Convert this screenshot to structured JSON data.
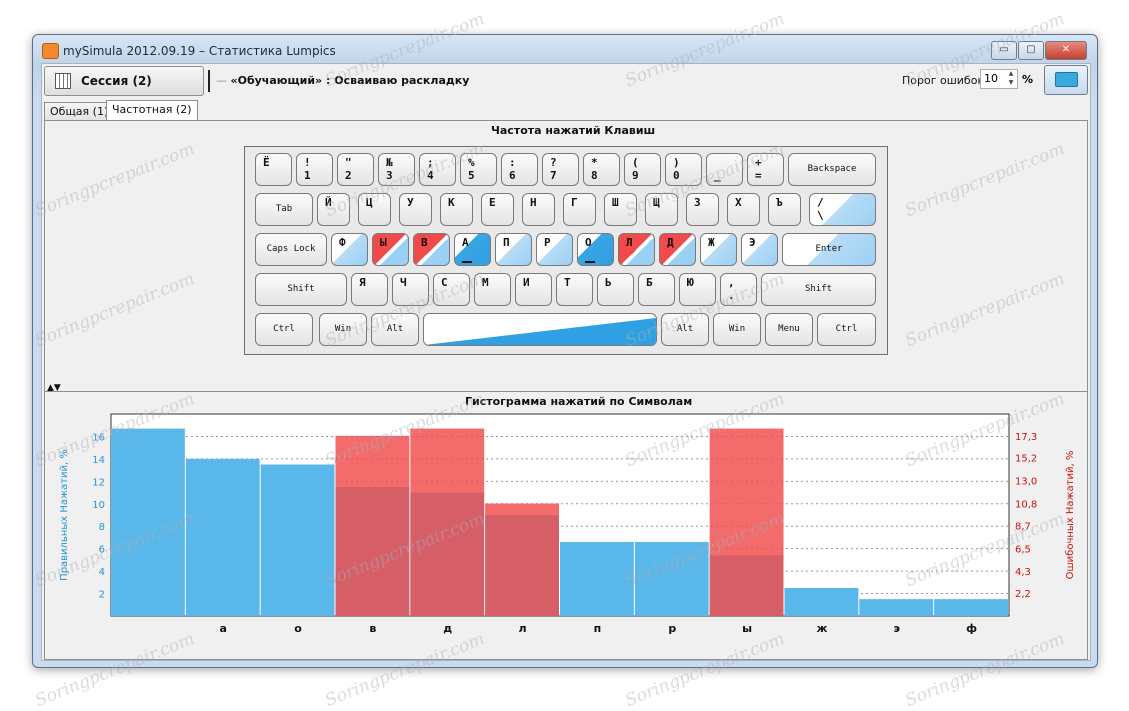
{
  "window": {
    "title": "mySimula 2012.09.19 – Статистика Lumpics",
    "minimize": "▭",
    "maximize": "▢",
    "close": "✕"
  },
  "toolbar": {
    "session_label": "Сессия (2)",
    "mode_dash": "—",
    "mode_name": "«Обучающий»",
    "mode_sep": " : ",
    "mode_desc": "Осваиваю раскладку",
    "error_label": "Порог ошибок:",
    "error_value": "10",
    "error_unit": "%"
  },
  "tabs": [
    {
      "label": "Общая (1)"
    },
    {
      "label": "Частотная (2)"
    }
  ],
  "keyboard": {
    "title": "Частота нажатий Клавиш",
    "rows": [
      [
        {
          "t": "Ё",
          "b": ""
        },
        {
          "t": "!",
          "b": "1"
        },
        {
          "t": "\"",
          "b": "2"
        },
        {
          "t": "№",
          "b": "3"
        },
        {
          "t": ";",
          "b": "4"
        },
        {
          "t": "%",
          "b": "5"
        },
        {
          "t": ":",
          "b": "6"
        },
        {
          "t": "?",
          "b": "7"
        },
        {
          "t": "*",
          "b": "8"
        },
        {
          "t": "(",
          "b": "9"
        },
        {
          "t": ")",
          "b": "0"
        },
        {
          "t": "",
          "b": "_"
        },
        {
          "t": "+",
          "b": "="
        },
        {
          "c": "Backspace"
        }
      ],
      [
        {
          "c": "Tab"
        },
        {
          "t": "Й"
        },
        {
          "t": "Ц"
        },
        {
          "t": "У"
        },
        {
          "t": "К"
        },
        {
          "t": "Е"
        },
        {
          "t": "Н"
        },
        {
          "t": "Г"
        },
        {
          "t": "Ш"
        },
        {
          "t": "Щ"
        },
        {
          "t": "З"
        },
        {
          "t": "Х"
        },
        {
          "t": "Ъ"
        },
        {
          "t": "/",
          "b": "\\"
        }
      ],
      [
        {
          "c": "Caps Lock"
        },
        {
          "t": "Ф"
        },
        {
          "t": "Ы"
        },
        {
          "t": "В"
        },
        {
          "t": "А"
        },
        {
          "t": "П"
        },
        {
          "t": "Р"
        },
        {
          "t": "О"
        },
        {
          "t": "Л"
        },
        {
          "t": "Д"
        },
        {
          "t": "Ж"
        },
        {
          "t": "Э"
        },
        {
          "c": "Enter"
        }
      ],
      [
        {
          "c": "Shift"
        },
        {
          "t": "Я"
        },
        {
          "t": "Ч"
        },
        {
          "t": "С"
        },
        {
          "t": "М"
        },
        {
          "t": "И"
        },
        {
          "t": "Т"
        },
        {
          "t": "Ь"
        },
        {
          "t": "Б"
        },
        {
          "t": "Ю"
        },
        {
          "t": ",",
          "b": "."
        },
        {
          "c": "Shift"
        }
      ],
      [
        {
          "c": "Ctrl"
        },
        {
          "c": "Win"
        },
        {
          "c": "Alt"
        },
        {
          "c": ""
        },
        {
          "c": "Alt"
        },
        {
          "c": "Win"
        },
        {
          "c": "Menu"
        },
        {
          "c": "Ctrl"
        }
      ]
    ]
  },
  "histogram": {
    "title": "Гистограмма нажатий по Символам"
  },
  "chart_data": {
    "type": "bar",
    "title": "Гистограмма нажатий по Символам",
    "ylabel": "Правильных Нажатий, %",
    "ylabel_right": "Ошибочных Нажатий, %",
    "categories": [
      "",
      "а",
      "о",
      "в",
      "д",
      "л",
      "п",
      "р",
      "ы",
      "ж",
      "э",
      "ф"
    ],
    "ylim": [
      0,
      18
    ],
    "yticks": [
      2,
      4,
      6,
      8,
      10,
      12,
      14,
      16
    ],
    "ylim_right": [
      0,
      19.4
    ],
    "yticks_right": [
      "2,2",
      "4,3",
      "6,5",
      "8,7",
      "10,8",
      "13,0",
      "15,2",
      "17,3"
    ],
    "series": [
      {
        "name": "Правильных Нажатий, %",
        "color": "#5ab7ea",
        "values": [
          16.7,
          14,
          13.5,
          11.5,
          11.0,
          9.0,
          6.6,
          6.6,
          5.4,
          2.5,
          1.5,
          1.5
        ]
      },
      {
        "name": "Ошибочных Нажатий, %",
        "color": "#f04a4a",
        "values": [
          0,
          0,
          0,
          17.3,
          18.0,
          10.8,
          0,
          0,
          18.0,
          0,
          0,
          0
        ]
      }
    ],
    "grid": true
  },
  "watermark": "Soringpcrepair.com"
}
